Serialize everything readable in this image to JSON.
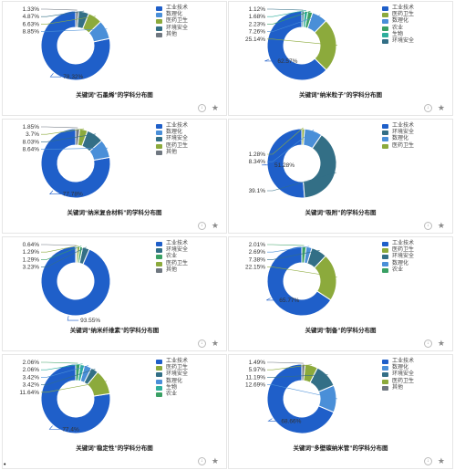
{
  "colors": {
    "工业技术": "#1f5fc9",
    "医药卫生": "#8caa3c",
    "数理化": "#4a8fd8",
    "环境安全": "#336f86",
    "农业": "#3aa064",
    "生物": "#2fae9c",
    "其他": "#6f7780"
  },
  "bullet_text": "•",
  "chart_data": [
    {
      "type": "pie",
      "title": "关键词“石墨烯”的学科分布图",
      "legend": [
        "工业技术",
        "数理化",
        "医药卫生",
        "环境安全",
        "其他"
      ],
      "slices": [
        {
          "category": "工业技术",
          "value": 78.32,
          "label": "78.32%"
        },
        {
          "category": "数理化",
          "value": 8.85,
          "label": "8.85%"
        },
        {
          "category": "医药卫生",
          "value": 6.63,
          "label": "6.63%"
        },
        {
          "category": "环境安全",
          "value": 4.87,
          "label": "4.87%"
        },
        {
          "category": "其他",
          "value": 1.33,
          "label": "1.33%"
        }
      ]
    },
    {
      "type": "pie",
      "title": "关键词“纳米粒子”的学科分布图",
      "legend": [
        "工业技术",
        "医药卫生",
        "数理化",
        "农业",
        "生物",
        "环境安全"
      ],
      "slices": [
        {
          "category": "工业技术",
          "value": 62.57,
          "label": "62.57%"
        },
        {
          "category": "医药卫生",
          "value": 25.14,
          "label": "25.14%"
        },
        {
          "category": "数理化",
          "value": 7.26,
          "label": "7.26%"
        },
        {
          "category": "农业",
          "value": 2.23,
          "label": "2.23%"
        },
        {
          "category": "生物",
          "value": 1.68,
          "label": "1.68%"
        },
        {
          "category": "环境安全",
          "value": 1.12,
          "label": "1.12%"
        }
      ]
    },
    {
      "type": "pie",
      "title": "关键词“纳米复合材料”的学科分布图",
      "legend": [
        "工业技术",
        "数理化",
        "环境安全",
        "医药卫生",
        "其他"
      ],
      "slices": [
        {
          "category": "工业技术",
          "value": 77.78,
          "label": "77.78%"
        },
        {
          "category": "数理化",
          "value": 8.64,
          "label": "8.64%"
        },
        {
          "category": "环境安全",
          "value": 8.03,
          "label": "8.03%"
        },
        {
          "category": "医药卫生",
          "value": 3.7,
          "label": "3.7%"
        },
        {
          "category": "其他",
          "value": 1.85,
          "label": "1.85%"
        }
      ]
    },
    {
      "type": "pie",
      "title": "关键词“吸附”的学科分布图",
      "legend": [
        "工业技术",
        "环境安全",
        "数理化",
        "医药卫生"
      ],
      "slices": [
        {
          "category": "工业技术",
          "value": 51.28,
          "label": "51.28%"
        },
        {
          "category": "环境安全",
          "value": 39.1,
          "label": "39.1%"
        },
        {
          "category": "数理化",
          "value": 8.34,
          "label": "8.34%"
        },
        {
          "category": "医药卫生",
          "value": 1.28,
          "label": "1.28%"
        }
      ]
    },
    {
      "type": "pie",
      "title": "关键词“纳米纤维素”的学科分布图",
      "legend": [
        "工业技术",
        "环境安全",
        "农业",
        "医药卫生",
        "其他"
      ],
      "slices": [
        {
          "category": "工业技术",
          "value": 93.55,
          "label": "93.55%"
        },
        {
          "category": "环境安全",
          "value": 3.23,
          "label": "3.23%"
        },
        {
          "category": "农业",
          "value": 1.29,
          "label": "1.29%"
        },
        {
          "category": "医药卫生",
          "value": 1.29,
          "label": "1.29%"
        },
        {
          "category": "其他",
          "value": 0.64,
          "label": "0.64%"
        }
      ]
    },
    {
      "type": "pie",
      "title": "关键词“制备”的学科分布图",
      "legend": [
        "工业技术",
        "医药卫生",
        "环境安全",
        "数理化",
        "农业"
      ],
      "slices": [
        {
          "category": "工业技术",
          "value": 65.77,
          "label": "65.77%"
        },
        {
          "category": "医药卫生",
          "value": 22.15,
          "label": "22.15%"
        },
        {
          "category": "环境安全",
          "value": 7.38,
          "label": "7.38%"
        },
        {
          "category": "数理化",
          "value": 2.69,
          "label": "2.69%"
        },
        {
          "category": "农业",
          "value": 2.01,
          "label": "2.01%"
        }
      ]
    },
    {
      "type": "pie",
      "title": "关键词“稳定性”的学科分布图",
      "legend": [
        "工业技术",
        "医药卫生",
        "环境安全",
        "数理化",
        "生物",
        "农业"
      ],
      "slices": [
        {
          "category": "工业技术",
          "value": 77.4,
          "label": "77.4%"
        },
        {
          "category": "医药卫生",
          "value": 11.64,
          "label": "11.64%"
        },
        {
          "category": "环境安全",
          "value": 3.42,
          "label": "3.42%"
        },
        {
          "category": "数理化",
          "value": 3.42,
          "label": "3.42%"
        },
        {
          "category": "生物",
          "value": 2.06,
          "label": "2.06%"
        },
        {
          "category": "农业",
          "value": 2.06,
          "label": "2.06%"
        }
      ]
    },
    {
      "type": "pie",
      "title": "关键词“多壁碳纳米管”的学科分布图",
      "legend": [
        "工业技术",
        "数理化",
        "环境安全",
        "医药卫生",
        "其他"
      ],
      "slices": [
        {
          "category": "工业技术",
          "value": 68.66,
          "label": "68.66%"
        },
        {
          "category": "数理化",
          "value": 12.69,
          "label": "12.69%"
        },
        {
          "category": "环境安全",
          "value": 11.19,
          "label": "11.19%"
        },
        {
          "category": "医药卫生",
          "value": 5.97,
          "label": "5.97%"
        },
        {
          "category": "其他",
          "value": 1.49,
          "label": "1.49%"
        }
      ]
    }
  ]
}
